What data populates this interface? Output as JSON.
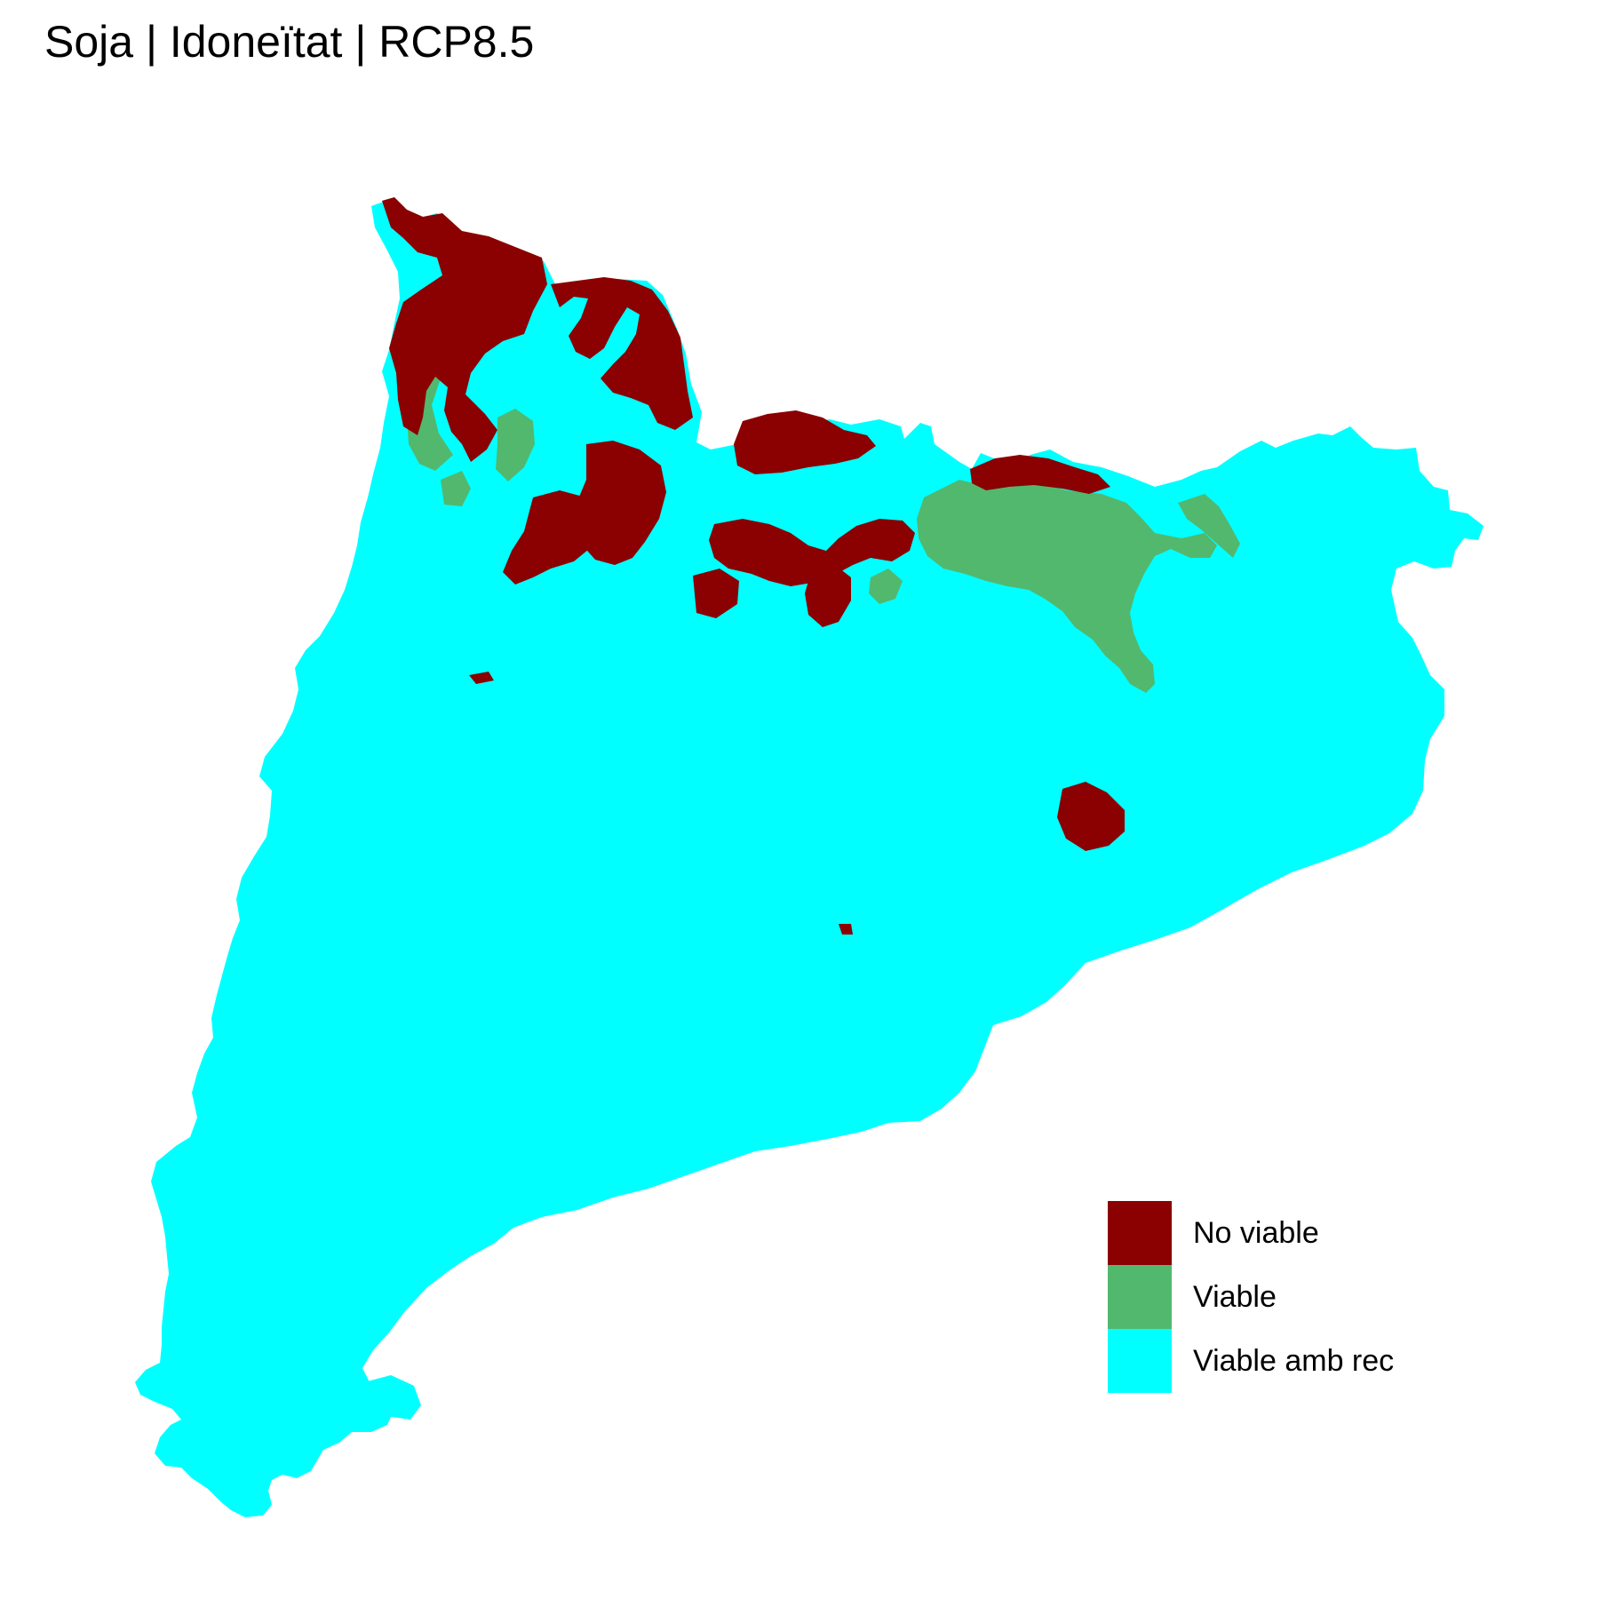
{
  "title": "Soja | Idoneïtat | RCP8.5",
  "colors": {
    "no_viable": "#8b0000",
    "viable": "#52b86e",
    "viable_amb_rec": "#00ffff",
    "background": "#ffffff"
  },
  "legend": {
    "items": [
      {
        "label": "No viable",
        "color": "#8b0000"
      },
      {
        "label": "Viable",
        "color": "#52b86e"
      },
      {
        "label": "Viable amb rec",
        "color": "#00ffff"
      }
    ]
  }
}
